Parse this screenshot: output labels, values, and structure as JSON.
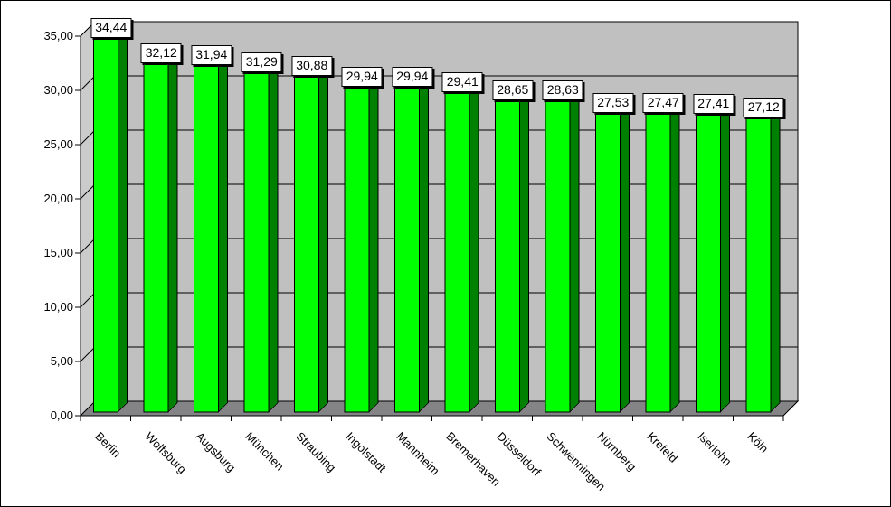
{
  "chart_data": {
    "type": "bar",
    "effect": "3d-column",
    "title": "",
    "xlabel": "",
    "ylabel": "",
    "legend": false,
    "grid": true,
    "categories": [
      "Berlin",
      "Wolfsburg",
      "Augsburg",
      "München",
      "Straubing",
      "Ingolstadt",
      "Mannheim",
      "Bremerhaven",
      "Düsseldorf",
      "Schwenningen",
      "Nürnberg",
      "Krefeld",
      "Iserlohn",
      "Köln"
    ],
    "values": [
      34.44,
      32.12,
      31.94,
      31.29,
      30.88,
      29.94,
      29.94,
      29.41,
      28.65,
      28.63,
      27.53,
      27.47,
      27.41,
      27.12
    ],
    "value_labels": [
      "34,44",
      "32,12",
      "31,94",
      "31,29",
      "30,88",
      "29,94",
      "29,94",
      "29,41",
      "28,65",
      "28,63",
      "27,53",
      "27,47",
      "27,41",
      "27,12"
    ],
    "y_axis": {
      "min": 0,
      "max": 35,
      "step": 5,
      "tick_labels": [
        "0,00",
        "5,00",
        "10,00",
        "15,00",
        "20,00",
        "25,00",
        "30,00",
        "35,00"
      ]
    },
    "colors": {
      "bar_front": "#00ff00",
      "bar_side": "#008000",
      "bar_top": "#009900",
      "bar_outline": "#000000",
      "back_wall": "#c0c0c0",
      "side_wall": "#cbcbcb",
      "floor": "#848487",
      "axis_line": "#000000",
      "gridline": "#000000",
      "label_box_bg": "#ffffff",
      "label_box_border": "#000000",
      "background": "#ffffff"
    }
  }
}
